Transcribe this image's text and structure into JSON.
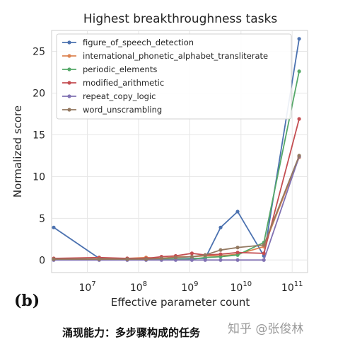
{
  "chart_data": {
    "type": "line",
    "title": "Highest breakthroughness tasks",
    "xlabel": "Effective parameter count",
    "ylabel": "Normalized score",
    "xscale": "log",
    "xlim": [
      2000000.0,
      200000000000.0
    ],
    "ylim": [
      -1.5,
      27.5
    ],
    "y_ticks": [
      0,
      5,
      10,
      15,
      20,
      25
    ],
    "x_ticks": [
      {
        "base": "10",
        "exp": "7",
        "value": 10000000.0
      },
      {
        "base": "10",
        "exp": "8",
        "value": 100000000.0
      },
      {
        "base": "10",
        "exp": "9",
        "value": 1000000000.0
      },
      {
        "base": "10",
        "exp": "10",
        "value": 10000000000.0
      },
      {
        "base": "10",
        "exp": "11",
        "value": 100000000000.0
      }
    ],
    "grid": true,
    "legend_position": "upper-left",
    "x": [
      2200000.0,
      17000000.0,
      60000000.0,
      140000000.0,
      280000000.0,
      530000000.0,
      1100000000.0,
      2000000000.0,
      4000000000.0,
      8600000000.0,
      28000000000.0,
      137000000000.0
    ],
    "series": [
      {
        "name": "figure_of_speech_detection",
        "color": "#4c72b0",
        "values": [
          3.9,
          0.2,
          0.1,
          0.1,
          0.1,
          0.1,
          0.2,
          0.2,
          3.9,
          5.8,
          0.5,
          26.5
        ]
      },
      {
        "name": "international_phonetic_alphabet_transliterate",
        "color": "#dd8452",
        "values": [
          0.1,
          0.1,
          0.2,
          0.3,
          0.2,
          0.4,
          0.4,
          0.5,
          0.5,
          0.7,
          1.6,
          12.3
        ]
      },
      {
        "name": "periodic_elements",
        "color": "#55a868",
        "values": [
          0.1,
          0.1,
          0.1,
          0.1,
          0.1,
          0.1,
          0.1,
          0.3,
          0.4,
          0.6,
          2.1,
          22.6
        ]
      },
      {
        "name": "modified_arithmetic",
        "color": "#c44e52",
        "values": [
          0.2,
          0.3,
          0.2,
          0.2,
          0.4,
          0.5,
          0.8,
          0.6,
          0.7,
          0.9,
          0.8,
          16.9
        ]
      },
      {
        "name": "repeat_copy_logic",
        "color": "#8172b3",
        "values": [
          0.0,
          0.0,
          0.0,
          0.0,
          0.0,
          0.0,
          0.0,
          0.0,
          0.0,
          0.0,
          0.0,
          12.4
        ]
      },
      {
        "name": "word_unscrambling",
        "color": "#937860",
        "values": [
          0.1,
          0.1,
          0.1,
          0.1,
          0.2,
          0.3,
          0.4,
          0.6,
          1.2,
          1.5,
          1.8,
          12.5
        ]
      }
    ]
  },
  "figure": {
    "panel_tag": "(b)",
    "caption": "涌现能力：多步骤构成的任务",
    "watermark": "知乎 @张俊林"
  }
}
